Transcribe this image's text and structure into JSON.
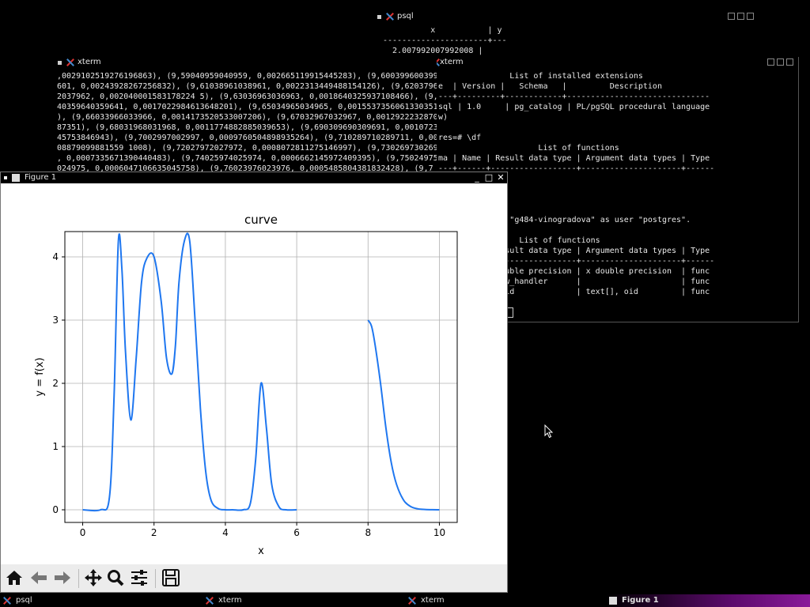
{
  "windows": {
    "psql": {
      "title": "psql",
      "lines": [
        "          x           | y",
        "----------------------+---",
        "  2.007992007992008 |"
      ]
    },
    "xterm_left": {
      "title": "xterm",
      "lines": [
        ",0029102519276196863), (9,59040959040959, 0,002665119915445283), (9,600399600399",
        "601, 0,00243928267256832), (9,61038961038961, 0,0022313449488154126), (9,6203796",
        "2037962, 0,002040001583178224 5), (9,63036963036963, 0,0018640325937108466), (9,6",
        "40359640359641, 0,0017022984613648201), (9,65034965034965, 0,0015537356061330351",
        "), (9,66033966033966, 0,0014173520533007206), (9,67032967032967, 0,0012922232870",
        "87351), (9,68031968031968, 0,0011774882885039653), (9,690309690309691, 0,0010723",
        "45753846943), (9,7002997002997, 0,0009760504898935264), (9,710289710289711, 0,00",
        "08879099881559 1008), (9,72027972027972, 0,0008072811275146997), (9,73026973026973",
        ", 0,0007335671390440483), (9,74025974025974, 0,0006662145972409395), (9,75024975",
        "024975, 0,0006047106635045758), (9,76023976023976, 0,0005485804381832428), (9,7"
      ]
    },
    "xterm_right": {
      "title": "xterm",
      "lines": [
        "               List of installed extensions",
        "e  | Version |   Schema   |         Description",
        "---+---------+------------+------------------------------",
        "sql | 1.0     | pg_catalog | PL/pgSQL procedural language",
        "w)",
        "",
        "res=# \\df",
        "                     List of functions",
        "ma | Name | Result data type | Argument data types | Type",
        "---+------+------------------+---------------------+------",
        "",
        "",
        "",
        "vinogradova",
        "ed to database \"g484-vinogradova\" as user \"postgres\".",
        "df",
        "                 List of functions",
        "me        | Result data type | Argument data types | Type",
        "----------+------------------+---------------------+------",
        "          | double precision | x double precision  | func",
        "handler   | fdw_handler      |                     | func",
        "validator | void             | text[], oid         | func"
      ]
    },
    "figure": {
      "title": "Figure 1"
    }
  },
  "chart_data": {
    "type": "line",
    "title": "curve",
    "xlabel": "x",
    "ylabel": "y = f(x)",
    "xlim": [
      -0.5,
      10.5
    ],
    "ylim": [
      -0.2,
      4.4
    ],
    "xticks": [
      0,
      2,
      4,
      6,
      8,
      10
    ],
    "yticks": [
      0,
      1,
      2,
      3,
      4
    ],
    "grid": true,
    "color": "#1f77f0",
    "series": [
      {
        "x": [
          0.0,
          0.5,
          0.75,
          0.88,
          1.0,
          1.1,
          1.2,
          1.35,
          1.5,
          1.65,
          1.8,
          2.0,
          2.2,
          2.35,
          2.5,
          2.6,
          2.7,
          2.85,
          3.0,
          3.15,
          3.3,
          3.45,
          3.6,
          3.8,
          4.0,
          4.2,
          4.5,
          4.7,
          4.85,
          5.0,
          5.15,
          5.3,
          5.5,
          5.7,
          6.0
        ],
        "y": [
          0.0,
          0.0,
          0.2,
          1.8,
          4.25,
          3.8,
          2.5,
          1.42,
          2.4,
          3.6,
          3.98,
          4.0,
          3.3,
          2.4,
          2.15,
          2.6,
          3.6,
          4.25,
          4.25,
          3.0,
          1.6,
          0.6,
          0.15,
          0.02,
          0.0,
          0.0,
          0.0,
          0.1,
          0.8,
          2.0,
          1.3,
          0.4,
          0.05,
          0.0,
          0.0
        ]
      },
      {
        "x": [
          8.0,
          8.1,
          8.2,
          8.35,
          8.5,
          8.65,
          8.8,
          9.0,
          9.2,
          9.4,
          9.6,
          9.8,
          10.0
        ],
        "y": [
          3.0,
          2.9,
          2.6,
          2.0,
          1.3,
          0.75,
          0.4,
          0.15,
          0.05,
          0.015,
          0.005,
          0.001,
          0.0
        ]
      }
    ]
  },
  "taskbar": {
    "items": [
      "psql",
      "xterm",
      "xterm",
      "Figure 1"
    ]
  }
}
